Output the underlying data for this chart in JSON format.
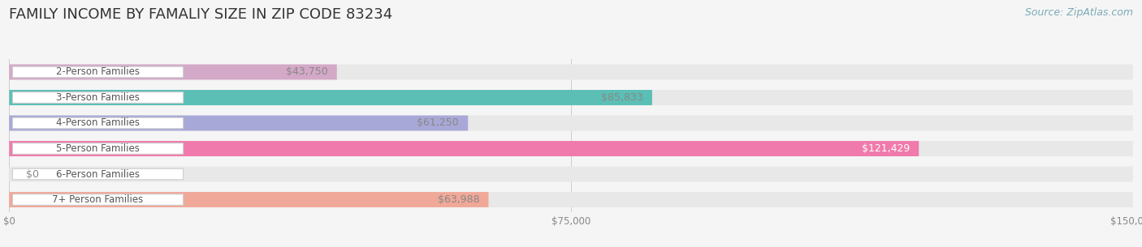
{
  "title": "FAMILY INCOME BY FAMALIY SIZE IN ZIP CODE 83234",
  "source": "Source: ZipAtlas.com",
  "categories": [
    "2-Person Families",
    "3-Person Families",
    "4-Person Families",
    "5-Person Families",
    "6-Person Families",
    "7+ Person Families"
  ],
  "values": [
    43750,
    85833,
    61250,
    121429,
    0,
    63988
  ],
  "bar_colors": [
    "#d4a8c7",
    "#5bbfb5",
    "#a8a8d8",
    "#f07aab",
    "#f5c98a",
    "#f0a898"
  ],
  "label_colors": [
    "#888888",
    "#888888",
    "#888888",
    "#ffffff",
    "#888888",
    "#888888"
  ],
  "max_value": 150000,
  "x_ticks": [
    0,
    75000,
    150000
  ],
  "x_tick_labels": [
    "$0",
    "$75,000",
    "$150,000"
  ],
  "background_color": "#f5f5f5",
  "bar_background_color": "#e8e8e8",
  "title_fontsize": 13,
  "source_fontsize": 9,
  "label_fontsize": 9,
  "category_fontsize": 8.5,
  "tick_fontsize": 8.5
}
